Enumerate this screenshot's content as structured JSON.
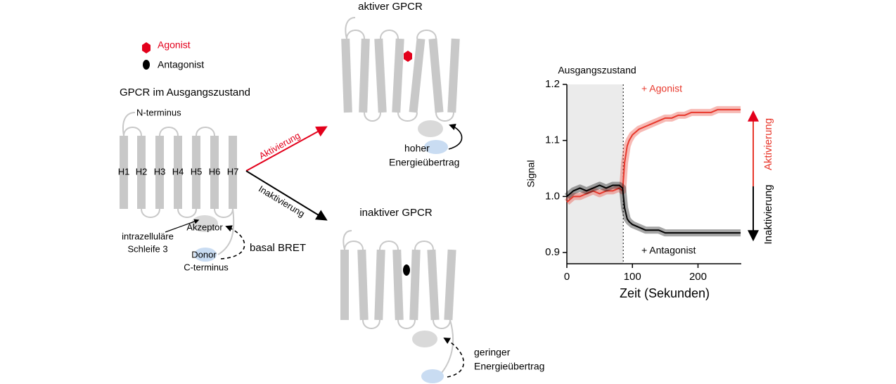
{
  "legend": {
    "agonist": "Agonist",
    "antagonist": "Antagonist"
  },
  "initial": {
    "title": "GPCR im Ausgangszustand",
    "n_terminus": "N-terminus",
    "helices": [
      "H1",
      "H2",
      "H3",
      "H4",
      "H5",
      "H6",
      "H7"
    ],
    "acceptor": "Akzeptor",
    "donor": "Donor",
    "c_terminus": "C-terminus",
    "loop_label": [
      "intrazelluläre",
      "Schleife 3"
    ],
    "bret": "basal BRET"
  },
  "arrows": {
    "activation": "Aktivierung",
    "inactivation": "Inaktivierung"
  },
  "active": {
    "title": "aktiver GPCR",
    "transfer": [
      "hoher",
      "Energieübertrag"
    ]
  },
  "inactive": {
    "title": "inaktiver GPCR",
    "transfer": [
      "geringer",
      "Energieübertrag"
    ]
  },
  "chart_data": {
    "type": "line",
    "xlabel": "Zeit (Sekunden)",
    "ylabel": "Signal",
    "annotations": [
      "Ausgangszustand",
      "Aktivierung",
      "Inaktivierung"
    ],
    "shaded_xrange": [
      0,
      86
    ],
    "x": [
      0,
      10,
      20,
      30,
      40,
      50,
      60,
      70,
      80,
      85,
      88,
      92,
      95,
      100,
      110,
      120,
      130,
      140,
      150,
      160,
      170,
      180,
      190,
      200,
      210,
      220,
      230,
      240,
      250,
      265
    ],
    "series": [
      {
        "name": "+ Agonist",
        "color": "#e8382c",
        "values": [
          0.99,
          1.0,
          1.0,
          1.005,
          1.01,
          1.005,
          1.01,
          1.01,
          1.015,
          1.01,
          1.06,
          1.09,
          1.1,
          1.11,
          1.12,
          1.125,
          1.13,
          1.135,
          1.14,
          1.14,
          1.145,
          1.145,
          1.15,
          1.15,
          1.15,
          1.15,
          1.155,
          1.155,
          1.155,
          1.155
        ]
      },
      {
        "name": "+ Antagonist",
        "color": "#000000",
        "values": [
          1.0,
          1.01,
          1.015,
          1.01,
          1.015,
          1.02,
          1.015,
          1.02,
          1.02,
          1.015,
          0.98,
          0.96,
          0.955,
          0.95,
          0.945,
          0.94,
          0.94,
          0.94,
          0.935,
          0.935,
          0.935,
          0.935,
          0.935,
          0.935,
          0.935,
          0.935,
          0.935,
          0.935,
          0.935,
          0.935
        ]
      }
    ],
    "xlim": [
      0,
      266
    ],
    "ylim": [
      0.88,
      1.2
    ],
    "xticks": [
      0,
      100,
      200
    ],
    "yticks": [
      0.9,
      {
        "value": 1,
        "label": "1.0"
      },
      1.1,
      1.2
    ]
  }
}
